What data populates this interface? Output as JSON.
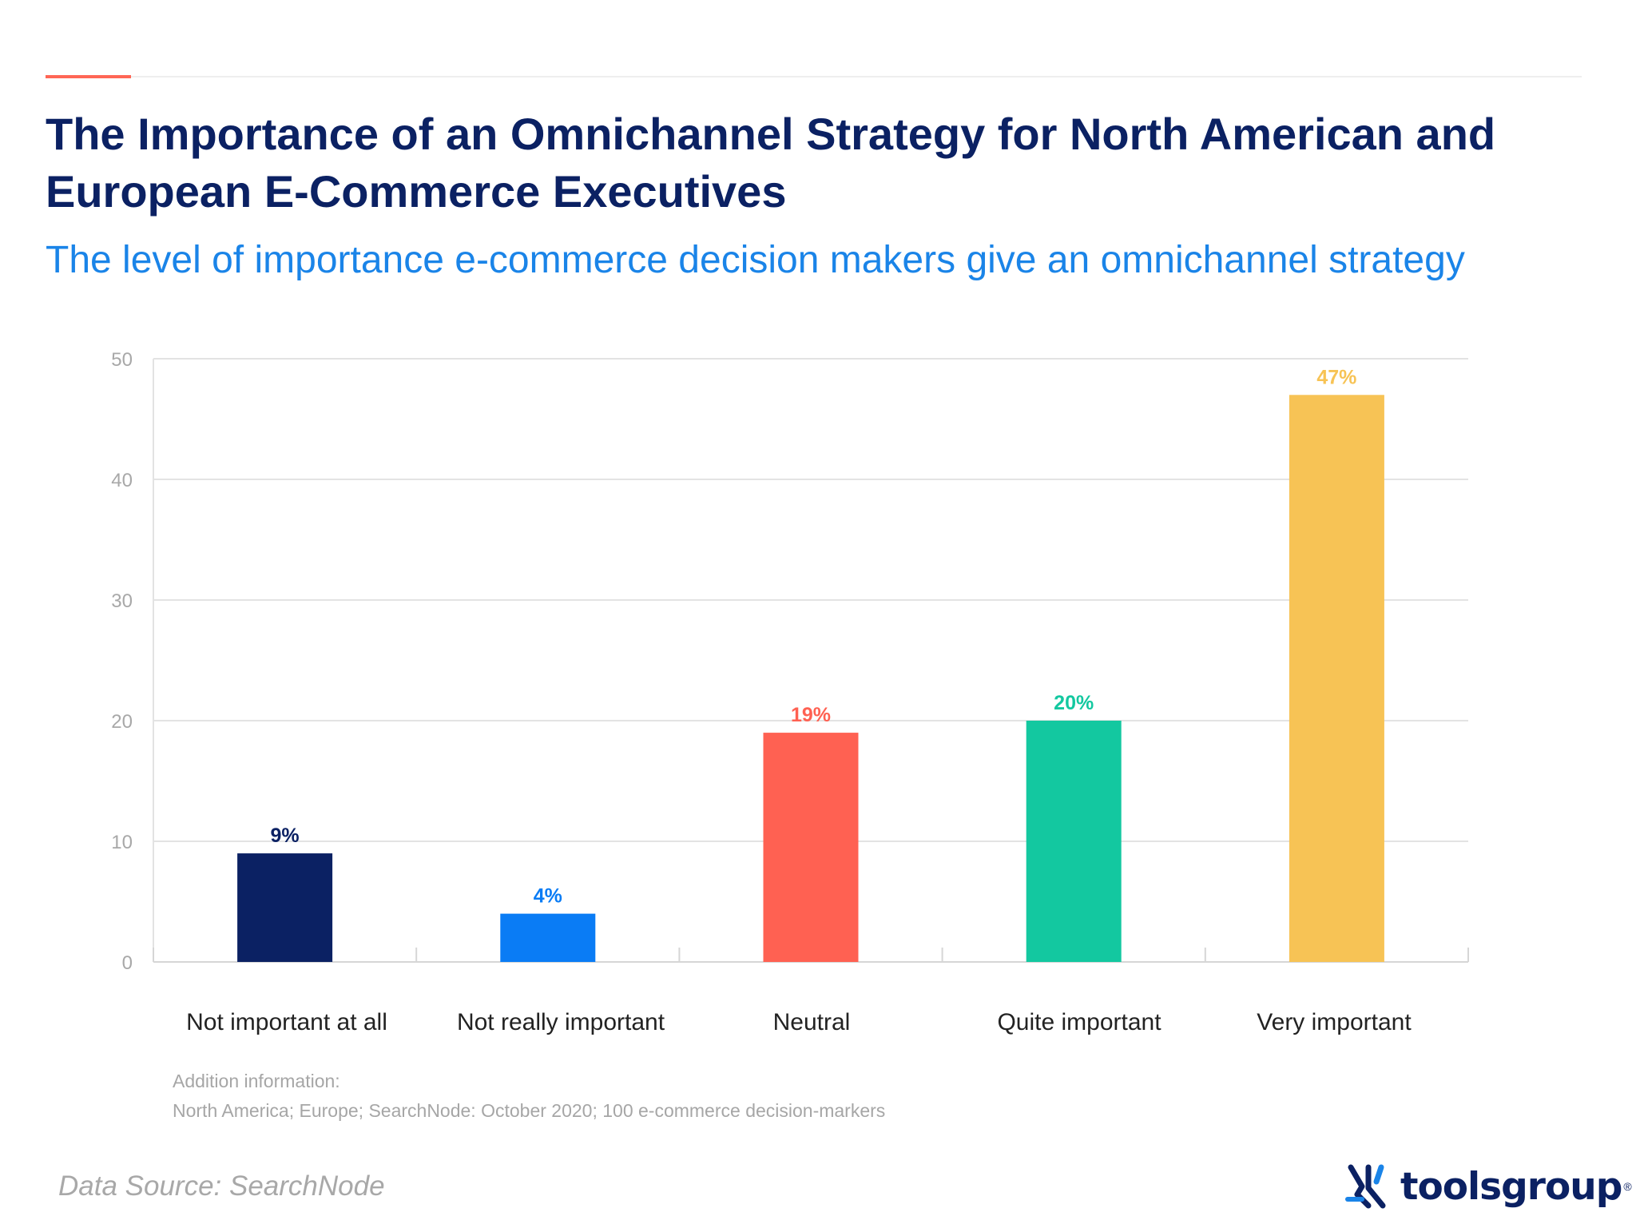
{
  "header": {
    "title": "The Importance of an Omnichannel Strategy for North American and European E-Commerce Executives",
    "subtitle": "The level of importance e-commerce decision makers give an omnichannel strategy"
  },
  "chart_data": {
    "type": "bar",
    "title": "The Importance of an Omnichannel Strategy for North American and European E-Commerce Executives",
    "subtitle": "The level of importance e-commerce decision makers give an omnichannel strategy",
    "xlabel": "",
    "ylabel": "",
    "categories": [
      "Not important at all",
      "Not really important",
      "Neutral",
      "Quite important",
      "Very important"
    ],
    "values": [
      9,
      4,
      19,
      20,
      47
    ],
    "data_labels": [
      "9%",
      "4%",
      "19%",
      "20%",
      "47%"
    ],
    "colors": [
      "#0b2163",
      "#0a7cf5",
      "#ff6152",
      "#13c8a0",
      "#f7c355"
    ],
    "ylim": [
      0,
      50
    ],
    "yticks": [
      0,
      10,
      20,
      30,
      40,
      50
    ],
    "grid": true,
    "legend": "none"
  },
  "notes": {
    "label": "Addition information:",
    "body": "North America; Europe; SearchNode: October 2020; 100 e-commerce decision-markers"
  },
  "source": "Data Source: SearchNode",
  "logo": {
    "text": "toolsgroup",
    "icon": "toolsgroup-logo-icon"
  },
  "colors": {
    "title": "#0b2163",
    "subtitle": "#1a84e8",
    "accent_rule": "#ff6655"
  }
}
